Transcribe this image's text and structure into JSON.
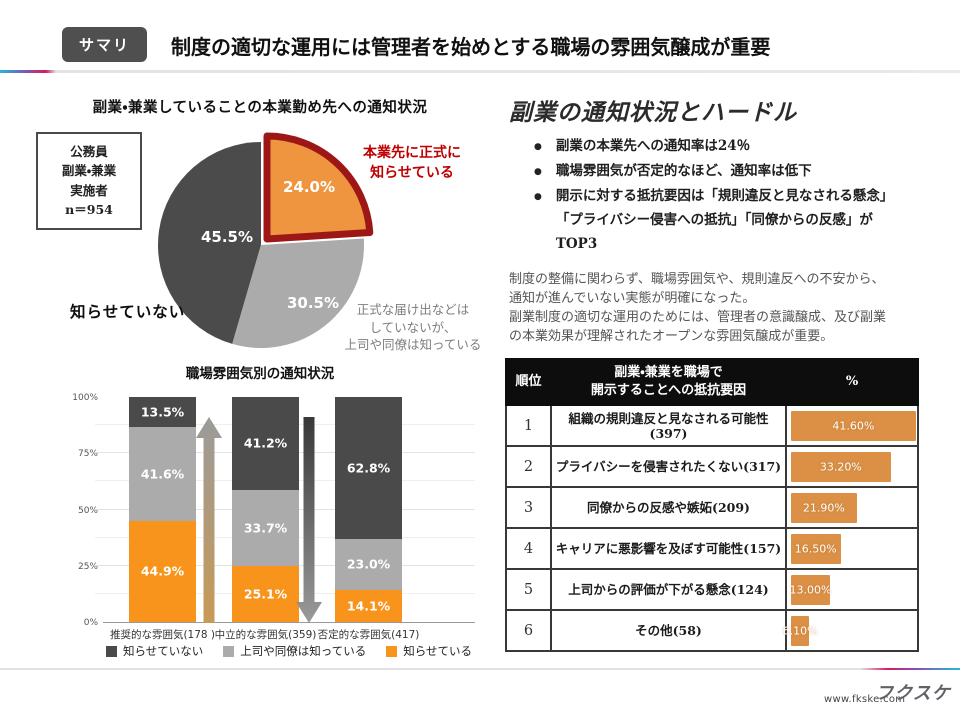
{
  "header": {
    "badge": "サマリ",
    "title": "制度の適切な運用には管理者を始めとする職場の雰囲気醸成が重要"
  },
  "pie": {
    "sample_box": "公務員\n副業・兼業\n実施者\nn＝954",
    "callout": "本業先に正式に\n知らせている",
    "callout_color": "#c00000",
    "label_not_notified": "知らせていない",
    "label_informal": "正式な届け出などは\nしていないが、\n上司や同僚は知っている"
  },
  "right": {
    "heading": "副業の通知状況とハードル",
    "bullets": [
      "副業の本業先への通知率は24％",
      "職場雰囲気が否定的なほど、通知率は低下",
      "開示に対する抵抗要因は「規則違反と見なされる懸念」\n「プライバシー侵害への抵抗」「同僚からの反感」が\nTOP3"
    ],
    "paragraph": "制度の整備に関わらず、職場雰囲気や、規則違反への不安から、\n通知が進んでいない実態が明確になった。\n副業制度の適切な運用のためには、管理者の意識醸成、及び副業\nの本業効果が理解されたオープンな雰囲気醸成が重要。"
  },
  "footer": {
    "url": "www.fkske.com",
    "logo": "フクスケ"
  },
  "chart_data": [
    {
      "type": "pie",
      "title": "副業・兼業していることの本業勤め先への通知状況",
      "n": 954,
      "slices": [
        {
          "label": "本業先に正式に知らせている",
          "value": 24.0,
          "display": "24.0%",
          "color": "#EF9540",
          "highlight_border": "#9E1717"
        },
        {
          "label": "正式な届け出などはしていないが、上司や同僚は知っている",
          "value": 30.5,
          "display": "30.5%",
          "color": "#ABABAB"
        },
        {
          "label": "知らせていない",
          "value": 45.5,
          "display": "45.5%",
          "color": "#4B4B4B"
        }
      ]
    },
    {
      "type": "bar",
      "stacked": true,
      "title": "職場雰囲気別の通知状況",
      "categories": [
        "推奨的な雰囲気(178 )",
        "中立的な雰囲気(359)",
        "否定的な雰囲気(417)"
      ],
      "series": [
        {
          "name": "知らせている",
          "color": "#F8941B",
          "values": [
            44.9,
            25.1,
            14.1
          ]
        },
        {
          "name": "上司や同僚は知っている",
          "color": "#ABABAB",
          "values": [
            41.6,
            33.7,
            23.0
          ]
        },
        {
          "name": "知らせていない",
          "color": "#4A4A4A",
          "values": [
            13.5,
            41.2,
            62.8
          ]
        }
      ],
      "y_ticks": [
        "100%",
        "75%",
        "50%",
        "25%",
        "0%"
      ],
      "ylim": [
        0,
        100
      ],
      "legend": [
        "知らせていない",
        "上司や同僚は知っている",
        "知らせている"
      ]
    },
    {
      "type": "table",
      "headers": [
        "順位",
        "副業・兼業を職場で\n開示することへの抵抗要因",
        "%"
      ],
      "bar_color": "#DB9045",
      "rows": [
        {
          "rank": "1",
          "factor": "組織の規則違反と見なされる可能性(397)",
          "value": 41.6,
          "display": "41.60%"
        },
        {
          "rank": "2",
          "factor": "プライバシーを侵害されたくない(317)",
          "value": 33.2,
          "display": "33.20%"
        },
        {
          "rank": "3",
          "factor": "同僚からの反感や嫉妬(209)",
          "value": 21.9,
          "display": "21.90%"
        },
        {
          "rank": "4",
          "factor": "キャリアに悪影響を及ぼす可能性(157)",
          "value": 16.5,
          "display": "16.50%"
        },
        {
          "rank": "5",
          "factor": "上司からの評価が下がる懸念(124)",
          "value": 13.0,
          "display": "13.00%"
        },
        {
          "rank": "6",
          "factor": "その他(58)",
          "value": 6.1,
          "display": "6.10%"
        }
      ]
    }
  ]
}
